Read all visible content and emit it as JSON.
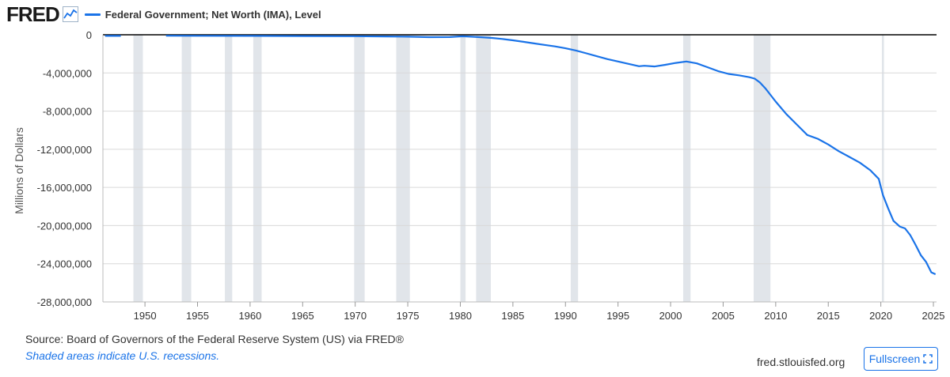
{
  "header": {
    "logo_text": "FRED",
    "logo_icon": "line-chart-icon",
    "legend_label": "Federal Government; Net Worth (IMA), Level"
  },
  "footer": {
    "source": "Source: Board of Governors of the Federal Reserve System (US) via FRED®",
    "note": "Shaded areas indicate U.S. recessions.",
    "site": "fred.stlouisfed.org",
    "fullscreen_label": "Fullscreen",
    "fullscreen_icon": "expand-icon"
  },
  "colors": {
    "series": "#1a73e8",
    "recession": "#e1e5ea",
    "grid": "#d9d9d9",
    "zero_line": "#000000"
  },
  "chart_data": {
    "type": "line",
    "title": "Federal Government; Net Worth (IMA), Level",
    "ylabel": "Millions of Dollars",
    "xlabel": "",
    "xlim": [
      1946.0,
      2025.3
    ],
    "ylim": [
      -28000000,
      0
    ],
    "y_ticks": [
      0,
      -4000000,
      -8000000,
      -12000000,
      -16000000,
      -20000000,
      -24000000,
      -28000000
    ],
    "y_tick_labels": [
      "0",
      "-4,000,000",
      "-8,000,000",
      "-12,000,000",
      "-16,000,000",
      "-20,000,000",
      "-24,000,000",
      "-28,000,000"
    ],
    "x_ticks": [
      1950,
      1955,
      1960,
      1965,
      1970,
      1975,
      1980,
      1985,
      1990,
      1995,
      2000,
      2005,
      2010,
      2015,
      2020,
      2025
    ],
    "x_tick_labels": [
      "1950",
      "1955",
      "1960",
      "1965",
      "1970",
      "1975",
      "1980",
      "1985",
      "1990",
      "1995",
      "2000",
      "2005",
      "2010",
      "2015",
      "2020",
      "2025"
    ],
    "grid": true,
    "recessions": [
      [
        1948.9,
        1949.8
      ],
      [
        1953.5,
        1954.4
      ],
      [
        1957.6,
        1958.3
      ],
      [
        1960.3,
        1961.1
      ],
      [
        1969.9,
        1970.9
      ],
      [
        1973.9,
        1975.2
      ],
      [
        1980.0,
        1980.5
      ],
      [
        1981.5,
        1982.9
      ],
      [
        1990.5,
        1991.2
      ],
      [
        2001.2,
        2001.9
      ],
      [
        2007.9,
        2009.5
      ],
      [
        2020.1,
        2020.3
      ]
    ],
    "series": [
      {
        "segments": [
          [
            [
              1946.2,
              -120000
            ],
            [
              1947.0,
              -120000
            ],
            [
              1947.7,
              -120000
            ]
          ],
          [
            [
              1952.0,
              -100000
            ],
            [
              1955.0,
              -110000
            ],
            [
              1960.0,
              -120000
            ],
            [
              1965.0,
              -130000
            ],
            [
              1970.0,
              -150000
            ],
            [
              1973.0,
              -170000
            ],
            [
              1975.0,
              -200000
            ],
            [
              1977.0,
              -250000
            ],
            [
              1979.0,
              -240000
            ],
            [
              1980.2,
              -160000
            ],
            [
              1981.0,
              -200000
            ],
            [
              1982.0,
              -260000
            ],
            [
              1983.0,
              -330000
            ],
            [
              1984.0,
              -440000
            ],
            [
              1985.0,
              -580000
            ],
            [
              1986.0,
              -740000
            ],
            [
              1987.0,
              -900000
            ],
            [
              1988.0,
              -1060000
            ],
            [
              1989.0,
              -1220000
            ],
            [
              1990.0,
              -1420000
            ],
            [
              1991.0,
              -1650000
            ],
            [
              1992.0,
              -1950000
            ],
            [
              1993.0,
              -2250000
            ],
            [
              1994.0,
              -2550000
            ],
            [
              1995.0,
              -2800000
            ],
            [
              1996.0,
              -3050000
            ],
            [
              1997.0,
              -3300000
            ],
            [
              1997.5,
              -3250000
            ],
            [
              1998.5,
              -3320000
            ],
            [
              1999.5,
              -3150000
            ],
            [
              2000.5,
              -2950000
            ],
            [
              2001.5,
              -2800000
            ],
            [
              2002.5,
              -3000000
            ],
            [
              2003.5,
              -3400000
            ],
            [
              2004.5,
              -3800000
            ],
            [
              2005.5,
              -4100000
            ],
            [
              2006.5,
              -4250000
            ],
            [
              2007.5,
              -4450000
            ],
            [
              2008.0,
              -4600000
            ],
            [
              2008.5,
              -5000000
            ],
            [
              2009.0,
              -5600000
            ],
            [
              2009.5,
              -6300000
            ],
            [
              2010.0,
              -7000000
            ],
            [
              2011.0,
              -8300000
            ],
            [
              2012.0,
              -9400000
            ],
            [
              2013.0,
              -10500000
            ],
            [
              2014.0,
              -10900000
            ],
            [
              2015.0,
              -11500000
            ],
            [
              2016.0,
              -12200000
            ],
            [
              2017.0,
              -12800000
            ],
            [
              2018.0,
              -13400000
            ],
            [
              2019.0,
              -14200000
            ],
            [
              2019.8,
              -15100000
            ],
            [
              2020.2,
              -16800000
            ],
            [
              2020.7,
              -18200000
            ],
            [
              2021.2,
              -19500000
            ],
            [
              2021.8,
              -20100000
            ],
            [
              2022.3,
              -20300000
            ],
            [
              2022.8,
              -21000000
            ],
            [
              2023.3,
              -22000000
            ],
            [
              2023.8,
              -23100000
            ],
            [
              2024.3,
              -23800000
            ],
            [
              2024.8,
              -24900000
            ],
            [
              2025.2,
              -25100000
            ]
          ]
        ]
      }
    ]
  }
}
